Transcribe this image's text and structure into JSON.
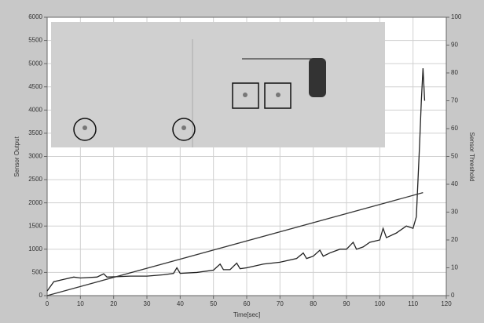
{
  "chart_data": {
    "type": "line",
    "x_label": "Time[sec]",
    "y_label": "Sensor Output",
    "y2_label": "Sensor Threshold",
    "xlim": [
      0,
      120
    ],
    "xticks": [
      0,
      10,
      20,
      30,
      40,
      50,
      60,
      70,
      80,
      90,
      100,
      110,
      120
    ],
    "ylim": [
      0,
      6000
    ],
    "yticks": [
      0,
      500,
      1000,
      1500,
      2000,
      2500,
      3000,
      3500,
      4000,
      4500,
      5000,
      5500,
      6000
    ],
    "y2lim": [
      0,
      100
    ],
    "y2ticks": [
      0,
      10,
      20,
      30,
      40,
      50,
      60,
      70,
      80,
      90,
      100
    ],
    "grid": true,
    "series": [
      {
        "color": "#222222",
        "x": [
          0,
          2,
          5,
          8,
          10,
          15,
          17,
          18,
          25,
          30,
          35,
          38,
          39,
          40,
          45,
          50,
          52,
          53,
          55,
          57,
          58,
          60,
          65,
          70,
          75,
          77,
          78,
          80,
          82,
          83,
          85,
          88,
          90,
          92,
          93,
          95,
          97,
          100,
          101,
          102,
          105,
          108,
          110,
          111,
          111.5,
          112,
          112.5,
          113,
          113.5
        ],
        "values": [
          100,
          300,
          350,
          400,
          380,
          400,
          470,
          400,
          420,
          420,
          450,
          480,
          600,
          480,
          500,
          550,
          680,
          560,
          560,
          700,
          580,
          600,
          680,
          720,
          800,
          920,
          800,
          850,
          980,
          850,
          920,
          1000,
          1000,
          1150,
          1000,
          1050,
          1150,
          1200,
          1450,
          1250,
          1350,
          1500,
          1450,
          1700,
          2500,
          3300,
          4200,
          4900,
          4200
        ]
      },
      {
        "color": "#333333",
        "axis": "y2",
        "x": [
          0,
          113
        ],
        "values": [
          0,
          37
        ]
      }
    ]
  }
}
